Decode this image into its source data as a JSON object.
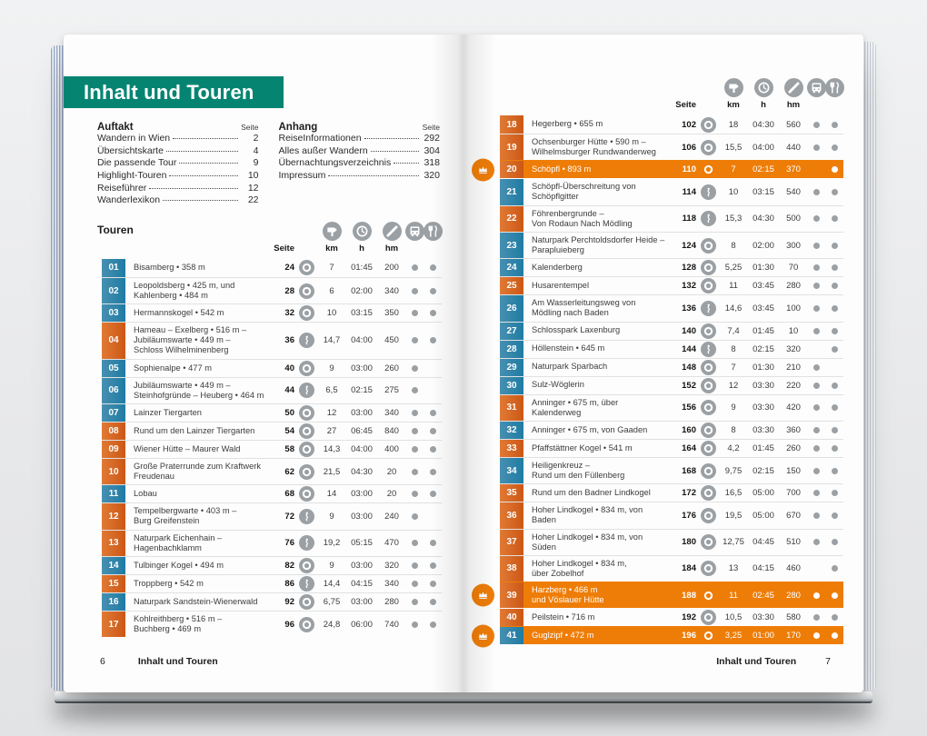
{
  "colors": {
    "teal": "#068472",
    "badge-blue": "#2b81a6",
    "badge-orange": "#d2611f",
    "highlight-orange": "#ee7d08",
    "icon-gray": "#9ba0a4",
    "text-dark": "#3c3c3b"
  },
  "table_header": {
    "seite": "Seite",
    "km": "km",
    "h": "h",
    "hm": "hm",
    "icons": [
      "signpost-icon",
      "clock-icon",
      "elevation-icon",
      "bus-icon",
      "restaurant-icon"
    ],
    "difficulty_icons": [
      "difficulty-easy-ring-icon",
      "difficulty-moderate-scurve-icon"
    ]
  },
  "left_page": {
    "banner_title": "Inhalt und Touren",
    "auftakt": {
      "title": "Auftakt",
      "seite_label": "Seite",
      "items": [
        {
          "label": "Wandern in Wien",
          "page": "2"
        },
        {
          "label": "Übersichtskarte",
          "page": "4"
        },
        {
          "label": "Die passende Tour",
          "page": "9"
        },
        {
          "label": "Highlight-Touren",
          "page": "10"
        },
        {
          "label": "Reiseführer",
          "page": "12"
        },
        {
          "label": "Wanderlexikon",
          "page": "22"
        }
      ]
    },
    "anhang": {
      "title": "Anhang",
      "seite_label": "Seite",
      "items": [
        {
          "label": "ReiseInformationen",
          "page": "292"
        },
        {
          "label": "Alles außer Wandern",
          "page": "304"
        },
        {
          "label": "Übernachtungsverzeichnis",
          "page": "318"
        },
        {
          "label": "Impressum",
          "page": "320"
        }
      ]
    },
    "touren_label": "Touren",
    "rows": [
      {
        "num": "01",
        "badge": "blue",
        "title": "Bisamberg • 358 m",
        "page": "24",
        "difficulty": "ring",
        "km": "7",
        "h": "01:45",
        "hm": "200",
        "bus": true,
        "food": true,
        "highlight": false,
        "crown": false
      },
      {
        "num": "02",
        "badge": "blue",
        "title": "Leopoldsberg • 425 m, und\nKahlenberg • 484 m",
        "page": "28",
        "difficulty": "ring",
        "km": "6",
        "h": "02:00",
        "hm": "340",
        "bus": true,
        "food": true,
        "highlight": false,
        "crown": false
      },
      {
        "num": "03",
        "badge": "blue",
        "title": "Hermannskogel • 542 m",
        "page": "32",
        "difficulty": "ring",
        "km": "10",
        "h": "03:15",
        "hm": "350",
        "bus": true,
        "food": true,
        "highlight": false,
        "crown": false
      },
      {
        "num": "04",
        "badge": "orange",
        "title": "Hameau – Exelberg • 516 m –\nJubiläumswarte • 449 m –\nSchloss Wilhelminenberg",
        "page": "36",
        "difficulty": "scurve",
        "km": "14,7",
        "h": "04:00",
        "hm": "450",
        "bus": true,
        "food": true,
        "highlight": false,
        "crown": false
      },
      {
        "num": "05",
        "badge": "blue",
        "title": "Sophienalpe • 477 m",
        "page": "40",
        "difficulty": "ring",
        "km": "9",
        "h": "03:00",
        "hm": "260",
        "bus": true,
        "food": false,
        "highlight": false,
        "crown": false
      },
      {
        "num": "06",
        "badge": "blue",
        "title": "Jubiläumswarte • 449 m –\nSteinhofgründe – Heuberg • 464 m",
        "page": "44",
        "difficulty": "scurve",
        "km": "6,5",
        "h": "02:15",
        "hm": "275",
        "bus": true,
        "food": false,
        "highlight": false,
        "crown": false
      },
      {
        "num": "07",
        "badge": "blue",
        "title": "Lainzer Tiergarten",
        "page": "50",
        "difficulty": "ring",
        "km": "12",
        "h": "03:00",
        "hm": "340",
        "bus": true,
        "food": true,
        "highlight": false,
        "crown": false
      },
      {
        "num": "08",
        "badge": "orange",
        "title": "Rund um den Lainzer Tiergarten",
        "page": "54",
        "difficulty": "ring",
        "km": "27",
        "h": "06:45",
        "hm": "840",
        "bus": true,
        "food": true,
        "highlight": false,
        "crown": false
      },
      {
        "num": "09",
        "badge": "orange",
        "title": "Wiener Hütte – Maurer Wald",
        "page": "58",
        "difficulty": "ring",
        "km": "14,3",
        "h": "04:00",
        "hm": "400",
        "bus": true,
        "food": true,
        "highlight": false,
        "crown": false
      },
      {
        "num": "10",
        "badge": "orange",
        "title": "Große Praterrunde zum Kraftwerk\nFreudenau",
        "page": "62",
        "difficulty": "ring",
        "km": "21,5",
        "h": "04:30",
        "hm": "20",
        "bus": true,
        "food": true,
        "highlight": false,
        "crown": false
      },
      {
        "num": "11",
        "badge": "blue",
        "title": "Lobau",
        "page": "68",
        "difficulty": "ring",
        "km": "14",
        "h": "03:00",
        "hm": "20",
        "bus": true,
        "food": true,
        "highlight": false,
        "crown": false
      },
      {
        "num": "12",
        "badge": "orange",
        "title": "Tempelbergwarte • 403 m –\nBurg Greifenstein",
        "page": "72",
        "difficulty": "scurve",
        "km": "9",
        "h": "03:00",
        "hm": "240",
        "bus": true,
        "food": false,
        "highlight": false,
        "crown": false
      },
      {
        "num": "13",
        "badge": "orange",
        "title": "Naturpark Eichenhain –\nHagenbachklamm",
        "page": "76",
        "difficulty": "scurve",
        "km": "19,2",
        "h": "05:15",
        "hm": "470",
        "bus": true,
        "food": true,
        "highlight": false,
        "crown": false
      },
      {
        "num": "14",
        "badge": "blue",
        "title": "Tulbinger Kogel • 494 m",
        "page": "82",
        "difficulty": "ring",
        "km": "9",
        "h": "03:00",
        "hm": "320",
        "bus": true,
        "food": true,
        "highlight": false,
        "crown": false
      },
      {
        "num": "15",
        "badge": "orange",
        "title": "Troppberg • 542 m",
        "page": "86",
        "difficulty": "scurve",
        "km": "14,4",
        "h": "04:15",
        "hm": "340",
        "bus": true,
        "food": true,
        "highlight": false,
        "crown": false
      },
      {
        "num": "16",
        "badge": "blue",
        "title": "Naturpark Sandstein-Wienerwald",
        "page": "92",
        "difficulty": "ring",
        "km": "6,75",
        "h": "03:00",
        "hm": "280",
        "bus": true,
        "food": true,
        "highlight": false,
        "crown": false
      },
      {
        "num": "17",
        "badge": "orange",
        "title": "Kohlreithberg • 516 m –\nBuchberg • 469 m",
        "page": "96",
        "difficulty": "ring",
        "km": "24,8",
        "h": "06:00",
        "hm": "740",
        "bus": true,
        "food": true,
        "highlight": false,
        "crown": false
      }
    ],
    "footer": {
      "page_number": "6",
      "title": "Inhalt und Touren"
    }
  },
  "right_page": {
    "rows": [
      {
        "num": "18",
        "badge": "orange",
        "title": "Hegerberg • 655 m",
        "page": "102",
        "difficulty": "ring",
        "km": "18",
        "h": "04:30",
        "hm": "560",
        "bus": true,
        "food": true,
        "highlight": false,
        "crown": false
      },
      {
        "num": "19",
        "badge": "orange",
        "title": "Ochsenburger Hütte • 590 m –\nWilhelmsburger Rundwanderweg",
        "page": "106",
        "difficulty": "ring",
        "km": "15,5",
        "h": "04:00",
        "hm": "440",
        "bus": true,
        "food": true,
        "highlight": false,
        "crown": false
      },
      {
        "num": "20",
        "badge": "orange",
        "title": "Schöpfl • 893 m",
        "page": "110",
        "difficulty": "ring",
        "km": "7",
        "h": "02:15",
        "hm": "370",
        "bus": false,
        "food": true,
        "highlight": true,
        "crown": true
      },
      {
        "num": "21",
        "badge": "blue",
        "title": "Schöpfl-Überschreitung von\nSchöpflgitter",
        "page": "114",
        "difficulty": "scurve",
        "km": "10",
        "h": "03:15",
        "hm": "540",
        "bus": true,
        "food": true,
        "highlight": false,
        "crown": false
      },
      {
        "num": "22",
        "badge": "orange",
        "title": "Föhrenbergrunde –\nVon Rodaun Nach Mödling",
        "page": "118",
        "difficulty": "scurve",
        "km": "15,3",
        "h": "04:30",
        "hm": "500",
        "bus": true,
        "food": true,
        "highlight": false,
        "crown": false
      },
      {
        "num": "23",
        "badge": "blue",
        "title": "Naturpark Perchtoldsdorfer Heide –\nParapluieberg",
        "page": "124",
        "difficulty": "ring",
        "km": "8",
        "h": "02:00",
        "hm": "300",
        "bus": true,
        "food": true,
        "highlight": false,
        "crown": false
      },
      {
        "num": "24",
        "badge": "blue",
        "title": "Kalenderberg",
        "page": "128",
        "difficulty": "ring",
        "km": "5,25",
        "h": "01:30",
        "hm": "70",
        "bus": true,
        "food": true,
        "highlight": false,
        "crown": false
      },
      {
        "num": "25",
        "badge": "orange",
        "title": "Husarentempel",
        "page": "132",
        "difficulty": "ring",
        "km": "11",
        "h": "03:45",
        "hm": "280",
        "bus": true,
        "food": true,
        "highlight": false,
        "crown": false
      },
      {
        "num": "26",
        "badge": "blue",
        "title": "Am Wasserleitungsweg von\nMödling nach Baden",
        "page": "136",
        "difficulty": "scurve",
        "km": "14,6",
        "h": "03:45",
        "hm": "100",
        "bus": true,
        "food": true,
        "highlight": false,
        "crown": false
      },
      {
        "num": "27",
        "badge": "blue",
        "title": "Schlosspark Laxenburg",
        "page": "140",
        "difficulty": "ring",
        "km": "7,4",
        "h": "01:45",
        "hm": "10",
        "bus": true,
        "food": true,
        "highlight": false,
        "crown": false
      },
      {
        "num": "28",
        "badge": "blue",
        "title": "Höllenstein • 645 m",
        "page": "144",
        "difficulty": "scurve",
        "km": "8",
        "h": "02:15",
        "hm": "320",
        "bus": false,
        "food": true,
        "highlight": false,
        "crown": false
      },
      {
        "num": "29",
        "badge": "blue",
        "title": "Naturpark Sparbach",
        "page": "148",
        "difficulty": "ring",
        "km": "7",
        "h": "01:30",
        "hm": "210",
        "bus": true,
        "food": false,
        "highlight": false,
        "crown": false
      },
      {
        "num": "30",
        "badge": "blue",
        "title": "Sulz-Wöglerin",
        "page": "152",
        "difficulty": "ring",
        "km": "12",
        "h": "03:30",
        "hm": "220",
        "bus": true,
        "food": true,
        "highlight": false,
        "crown": false
      },
      {
        "num": "31",
        "badge": "orange",
        "title": "Anninger • 675 m, über Kalenderweg",
        "page": "156",
        "difficulty": "ring",
        "km": "9",
        "h": "03:30",
        "hm": "420",
        "bus": true,
        "food": true,
        "highlight": false,
        "crown": false
      },
      {
        "num": "32",
        "badge": "blue",
        "title": "Anninger • 675 m, von Gaaden",
        "page": "160",
        "difficulty": "ring",
        "km": "8",
        "h": "03:30",
        "hm": "360",
        "bus": true,
        "food": true,
        "highlight": false,
        "crown": false
      },
      {
        "num": "33",
        "badge": "orange",
        "title": "Pfaffstättner Kogel • 541 m",
        "page": "164",
        "difficulty": "ring",
        "km": "4,2",
        "h": "01:45",
        "hm": "260",
        "bus": true,
        "food": true,
        "highlight": false,
        "crown": false
      },
      {
        "num": "34",
        "badge": "blue",
        "title": "Heiligenkreuz –\nRund um den Füllenberg",
        "page": "168",
        "difficulty": "ring",
        "km": "9,75",
        "h": "02:15",
        "hm": "150",
        "bus": true,
        "food": true,
        "highlight": false,
        "crown": false
      },
      {
        "num": "35",
        "badge": "orange",
        "title": "Rund um den Badner Lindkogel",
        "page": "172",
        "difficulty": "ring",
        "km": "16,5",
        "h": "05:00",
        "hm": "700",
        "bus": true,
        "food": true,
        "highlight": false,
        "crown": false
      },
      {
        "num": "36",
        "badge": "orange",
        "title": "Hoher Lindkogel • 834 m, von Baden",
        "page": "176",
        "difficulty": "ring",
        "km": "19,5",
        "h": "05:00",
        "hm": "670",
        "bus": true,
        "food": true,
        "highlight": false,
        "crown": false
      },
      {
        "num": "37",
        "badge": "orange",
        "title": "Hoher Lindkogel • 834 m, von Süden",
        "page": "180",
        "difficulty": "ring",
        "km": "12,75",
        "h": "04:45",
        "hm": "510",
        "bus": true,
        "food": true,
        "highlight": false,
        "crown": false
      },
      {
        "num": "38",
        "badge": "orange",
        "title": "Hoher Lindkogel • 834 m,\nüber Zobelhof",
        "page": "184",
        "difficulty": "ring",
        "km": "13",
        "h": "04:15",
        "hm": "460",
        "bus": false,
        "food": true,
        "highlight": false,
        "crown": false
      },
      {
        "num": "39",
        "badge": "orange",
        "title": "Harzberg • 466 m\nund Vöslauer Hütte",
        "page": "188",
        "difficulty": "ring",
        "km": "11",
        "h": "02:45",
        "hm": "280",
        "bus": true,
        "food": true,
        "highlight": true,
        "crown": true
      },
      {
        "num": "40",
        "badge": "orange",
        "title": "Peilstein • 716 m",
        "page": "192",
        "difficulty": "ring",
        "km": "10,5",
        "h": "03:30",
        "hm": "580",
        "bus": true,
        "food": true,
        "highlight": false,
        "crown": false
      },
      {
        "num": "41",
        "badge": "blue",
        "title": "Guglzipf • 472 m",
        "page": "196",
        "difficulty": "ring",
        "km": "3,25",
        "h": "01:00",
        "hm": "170",
        "bus": true,
        "food": true,
        "highlight": true,
        "crown": true
      }
    ],
    "footer": {
      "title": "Inhalt und Touren",
      "page_number": "7"
    }
  }
}
